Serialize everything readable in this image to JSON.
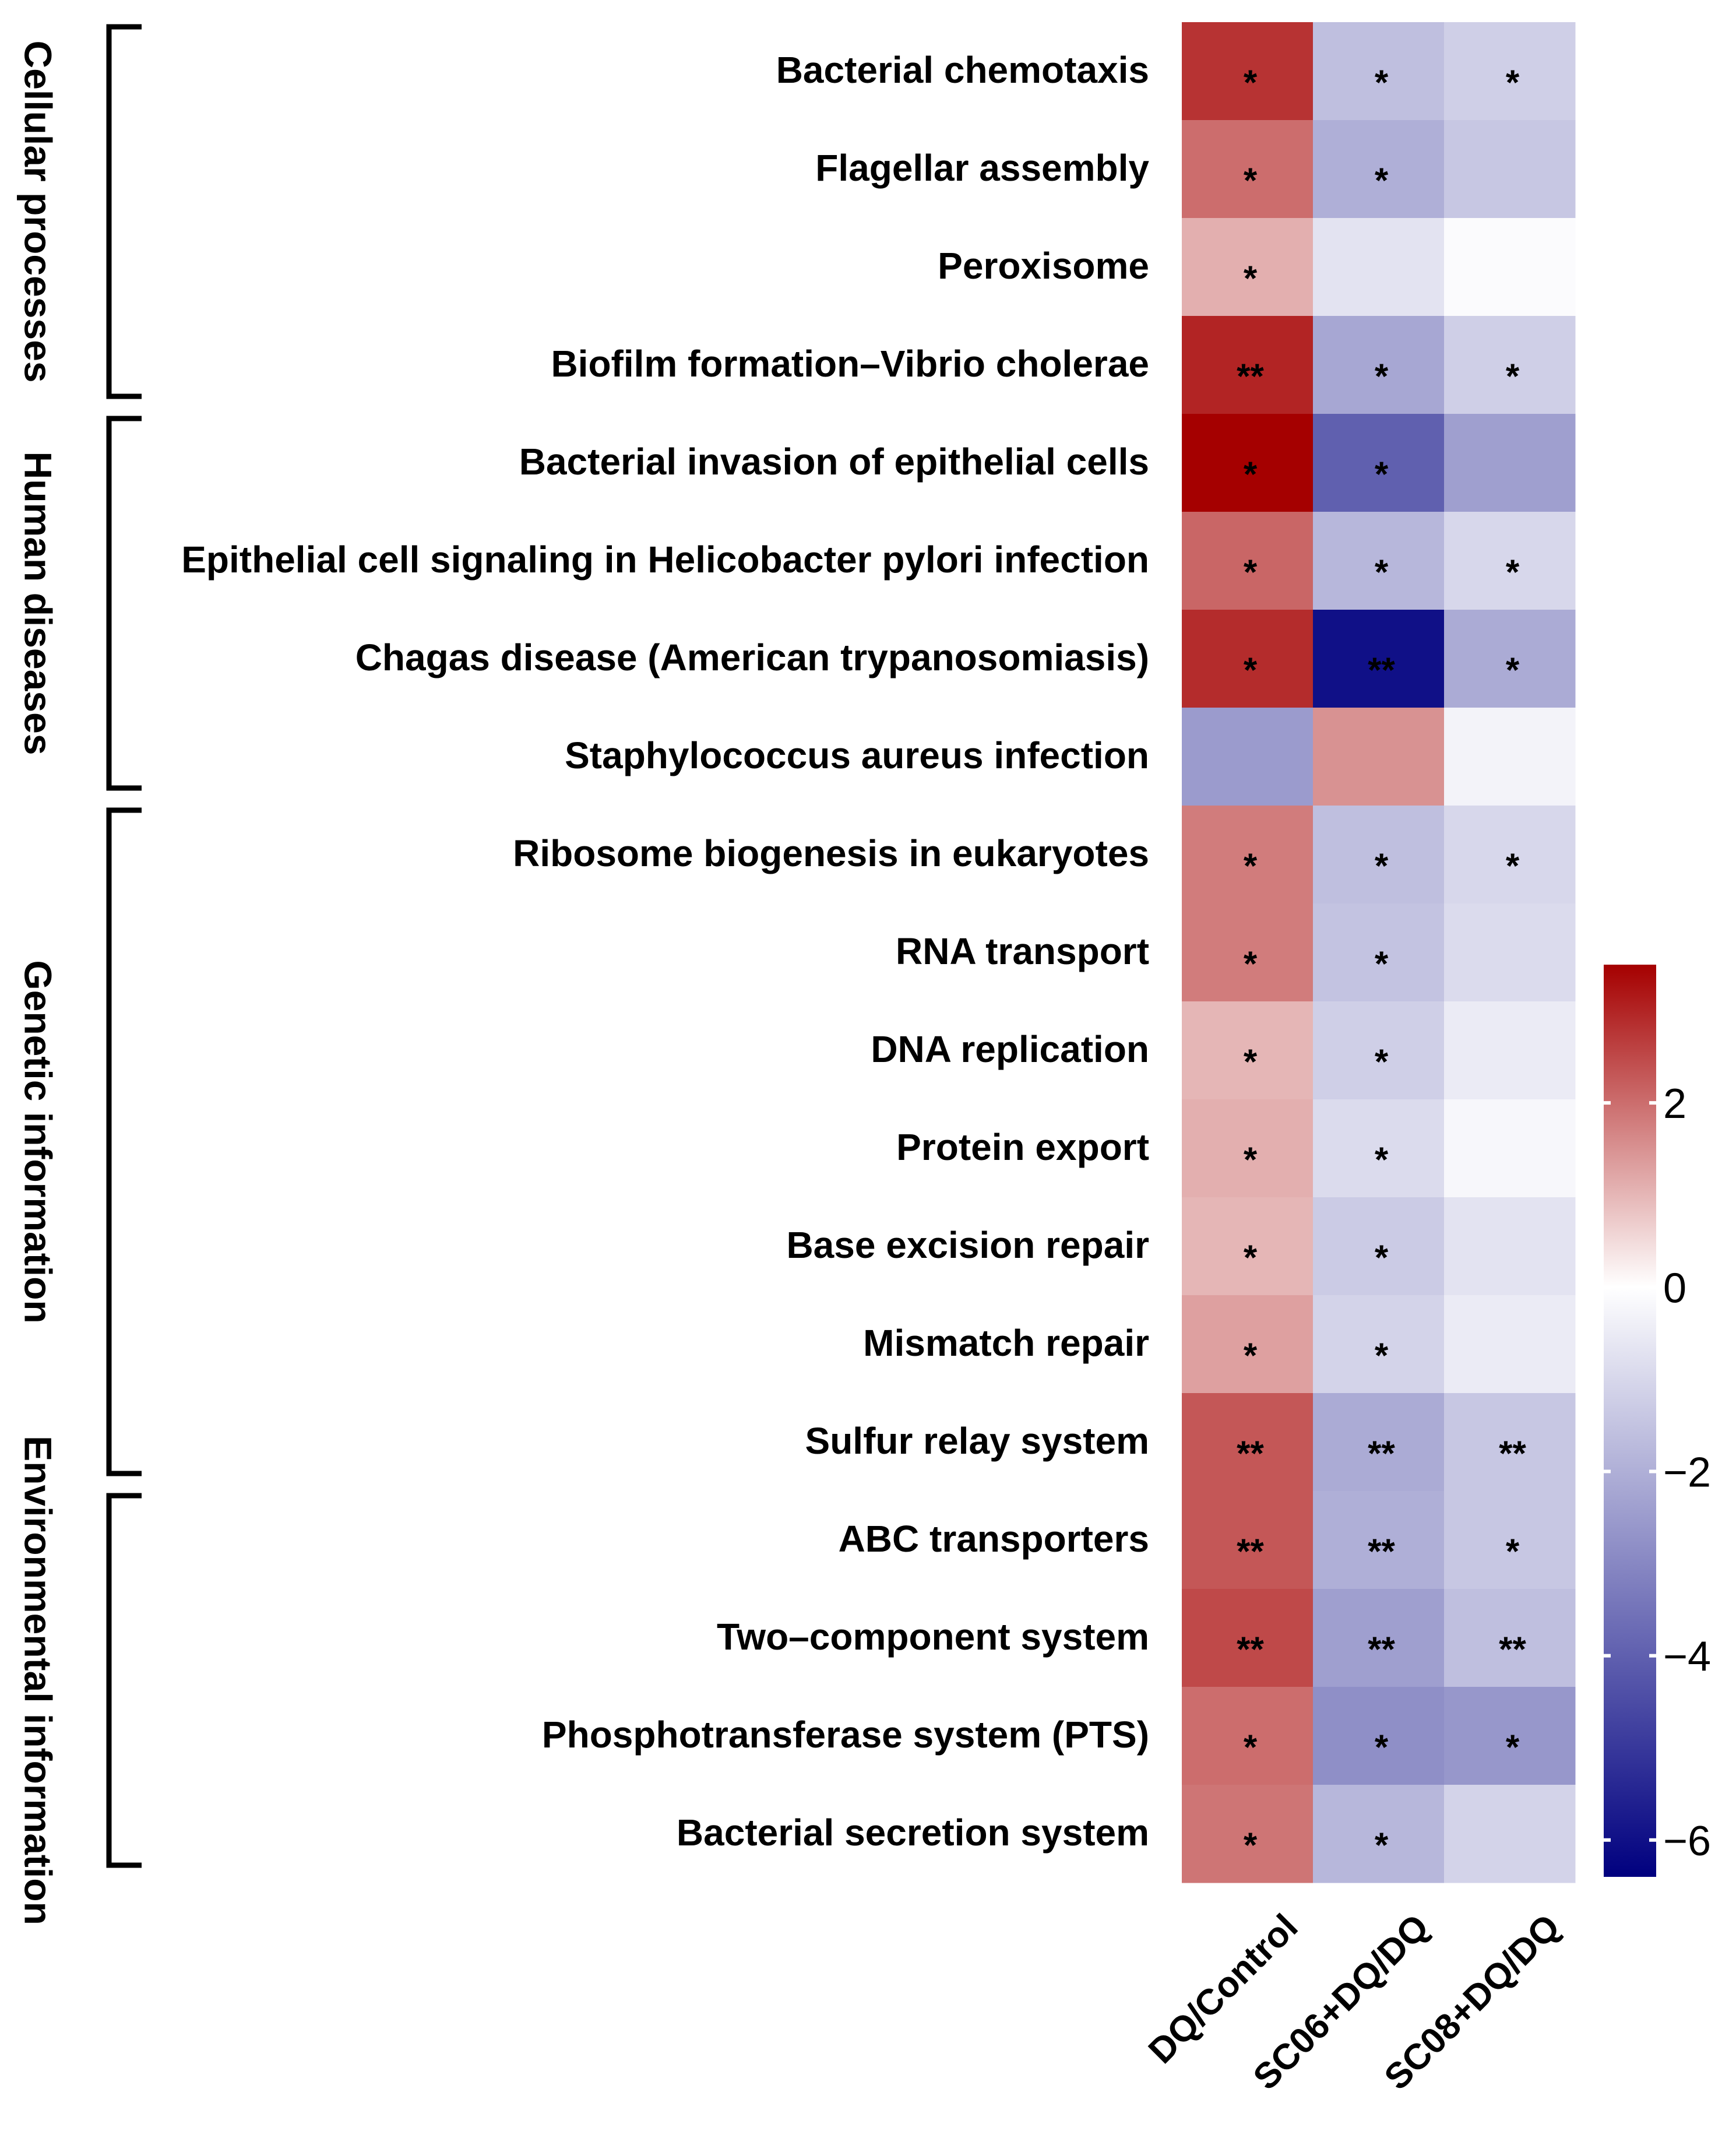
{
  "chart_data": {
    "type": "heatmap",
    "title": "",
    "columns": [
      "DQ/Control",
      "SC06+DQ/DQ",
      "SC08+DQ/DQ"
    ],
    "rows": [
      "Bacterial chemotaxis",
      "Flagellar assembly",
      "Peroxisome",
      "Biofilm formation–Vibrio cholerae",
      "Bacterial invasion of epithelial cells",
      "Epithelial cell signaling in Helicobacter pylori infection",
      "Chagas disease (American trypanosomiasis)",
      "Staphylococcus aureus infection",
      "Ribosome biogenesis in eukaryotes",
      "RNA transport",
      "DNA replication",
      "Protein export",
      "Base excision repair",
      "Mismatch repair",
      "Sulfur relay system",
      "ABC transporters",
      "Two–component system",
      "Phosphotransferase system (PTS)",
      "Bacterial secretion system"
    ],
    "values": [
      [
        2.8,
        -1.6,
        -1.2
      ],
      [
        2.0,
        -2.0,
        -1.4
      ],
      [
        1.1,
        -0.7,
        -0.1
      ],
      [
        3.0,
        -2.2,
        -1.2
      ],
      [
        3.5,
        -4.0,
        -2.4
      ],
      [
        2.1,
        -1.8,
        -1.0
      ],
      [
        2.9,
        -6.0,
        -2.1
      ],
      [
        -2.5,
        1.5,
        -0.3
      ],
      [
        1.8,
        -1.6,
        -1.0
      ],
      [
        1.8,
        -1.5,
        -0.9
      ],
      [
        1.0,
        -1.2,
        -0.5
      ],
      [
        1.1,
        -0.9,
        -0.2
      ],
      [
        1.0,
        -1.3,
        -0.7
      ],
      [
        1.3,
        -1.1,
        -0.5
      ],
      [
        2.3,
        -2.1,
        -1.4
      ],
      [
        2.3,
        -2.0,
        -1.4
      ],
      [
        2.5,
        -2.4,
        -1.6
      ],
      [
        2.0,
        -2.8,
        -2.6
      ],
      [
        1.9,
        -1.8,
        -1.1
      ]
    ],
    "significance": [
      [
        "*",
        "*",
        "*"
      ],
      [
        "*",
        "*",
        ""
      ],
      [
        "*",
        "",
        ""
      ],
      [
        "**",
        "*",
        "*"
      ],
      [
        "*",
        "*",
        ""
      ],
      [
        "*",
        "*",
        "*"
      ],
      [
        "*",
        "**",
        "*"
      ],
      [
        "",
        "",
        ""
      ],
      [
        "*",
        "*",
        "*"
      ],
      [
        "*",
        "*",
        ""
      ],
      [
        "*",
        "*",
        ""
      ],
      [
        "*",
        "*",
        ""
      ],
      [
        "*",
        "*",
        ""
      ],
      [
        "*",
        "*",
        ""
      ],
      [
        "**",
        "**",
        "**"
      ],
      [
        "**",
        "**",
        "*"
      ],
      [
        "**",
        "**",
        "**"
      ],
      [
        "*",
        "*",
        "*"
      ],
      [
        "*",
        "*",
        ""
      ]
    ],
    "groups": [
      {
        "label": "Cellular processes",
        "start": 0,
        "end": 3
      },
      {
        "label": "Human diseases",
        "start": 4,
        "end": 7
      },
      {
        "label": "Genetic information",
        "start": 8,
        "end": 14
      },
      {
        "label": "Environmental information",
        "start": 15,
        "end": 18
      }
    ],
    "colorbar": {
      "min": -6.4,
      "max": 3.5,
      "ticks": [
        2,
        0,
        -2,
        -4,
        -6
      ],
      "tick_labels": [
        "2",
        "0",
        "−2",
        "−4",
        "−6"
      ],
      "colors": {
        "low": "#00007f",
        "mid": "#ffffff",
        "high": "#a50000"
      }
    }
  }
}
